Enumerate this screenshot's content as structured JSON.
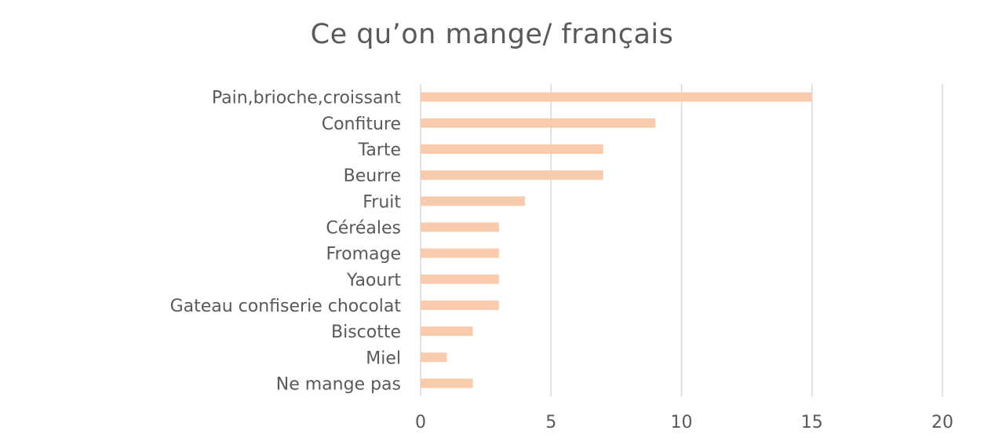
{
  "chart_data": {
    "type": "bar",
    "orientation": "horizontal",
    "title": "Ce qu’on mange/ français",
    "categories": [
      "Pain,brioche,croissant",
      "Confiture",
      "Tarte",
      "Beurre",
      "Fruit",
      "Céréales",
      "Fromage",
      "Yaourt",
      "Gateau confiserie chocolat",
      "Biscotte",
      "Miel",
      "Ne mange pas"
    ],
    "values": [
      15,
      9,
      7,
      7,
      4,
      3,
      3,
      3,
      3,
      2,
      1,
      2
    ],
    "xlabel": "",
    "ylabel": "",
    "xlim": [
      0,
      20
    ],
    "xticks": [
      "0",
      "5",
      "10",
      "15",
      "20"
    ],
    "grid": "vertical gridlines on",
    "legend": "none",
    "colors": {
      "bar": "#F8CBAD",
      "grid": "#D9D9D9",
      "text": "#595959"
    }
  }
}
